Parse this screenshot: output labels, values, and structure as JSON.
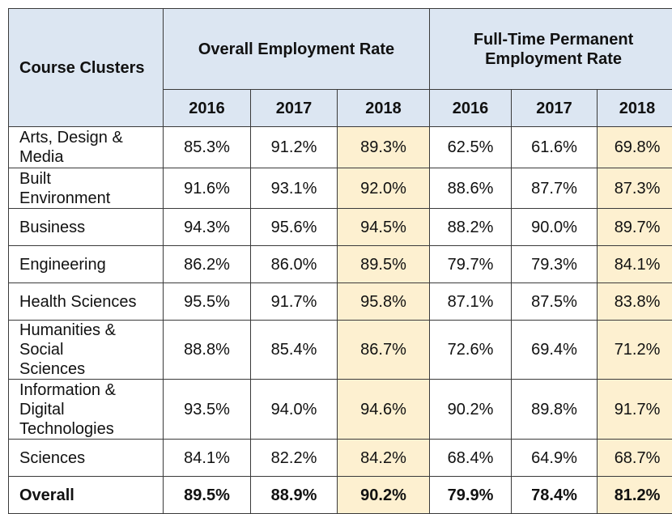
{
  "header": {
    "course_clusters": "Course Clusters",
    "overall_group": "Overall Employment Rate",
    "fulltime_group": "Full-Time Permanent Employment Rate",
    "years": [
      "2016",
      "2017",
      "2018",
      "2016",
      "2017",
      "2018"
    ]
  },
  "colors": {
    "header_bg": "#dce6f2",
    "highlight_bg": "#fdf0d0"
  },
  "rows": [
    {
      "name": "Arts, Design & Media",
      "values": [
        "85.3%",
        "91.2%",
        "89.3%",
        "62.5%",
        "61.6%",
        "69.8%"
      ]
    },
    {
      "name": "Built Environment",
      "values": [
        "91.6%",
        "93.1%",
        "92.0%",
        "88.6%",
        "87.7%",
        "87.3%"
      ]
    },
    {
      "name": "Business",
      "values": [
        "94.3%",
        "95.6%",
        "94.5%",
        "88.2%",
        "90.0%",
        "89.7%"
      ]
    },
    {
      "name": "Engineering",
      "values": [
        "86.2%",
        "86.0%",
        "89.5%",
        "79.7%",
        "79.3%",
        "84.1%"
      ]
    },
    {
      "name": "Health Sciences",
      "values": [
        "95.5%",
        "91.7%",
        "95.8%",
        "87.1%",
        "87.5%",
        "83.8%"
      ]
    },
    {
      "name": "Humanities & Social Sciences",
      "values": [
        "88.8%",
        "85.4%",
        "86.7%",
        "72.6%",
        "69.4%",
        "71.2%"
      ]
    },
    {
      "name": "Information & Digital Technologies",
      "values": [
        "93.5%",
        "94.0%",
        "94.6%",
        "90.2%",
        "89.8%",
        "91.7%"
      ]
    },
    {
      "name": "Sciences",
      "values": [
        "84.1%",
        "82.2%",
        "84.2%",
        "68.4%",
        "64.9%",
        "68.7%"
      ]
    },
    {
      "name": "Overall",
      "values": [
        "89.5%",
        "88.9%",
        "90.2%",
        "79.9%",
        "78.4%",
        "81.2%"
      ]
    }
  ]
}
